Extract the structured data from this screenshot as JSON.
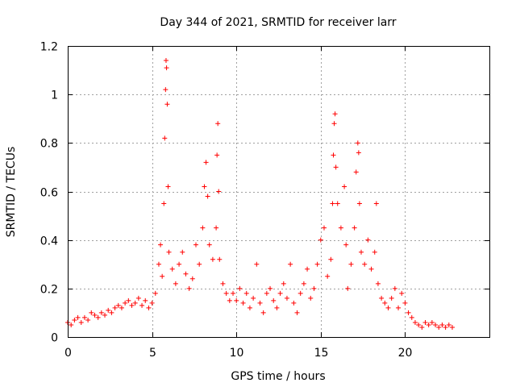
{
  "chart_data": {
    "type": "scatter",
    "title": "Day 344 of 2021, SRMTID for receiver larr",
    "xlabel": "GPS time / hours",
    "ylabel": "SRMTID / TECUs",
    "xlim": [
      0,
      25
    ],
    "ylim": [
      0,
      1.2
    ],
    "xticks": [
      0,
      5,
      10,
      15,
      20
    ],
    "yticks": [
      0,
      0.2,
      0.4,
      0.6,
      0.8,
      1,
      1.2
    ],
    "ytick_labels": [
      "0",
      "0.2",
      "0.4",
      "0.6",
      "0.8",
      "1",
      "1.2"
    ],
    "grid": true,
    "marker": "plus",
    "color": "#ff0000",
    "series": [
      {
        "name": "SRMTID",
        "points": [
          [
            0.0,
            0.06
          ],
          [
            0.2,
            0.05
          ],
          [
            0.4,
            0.07
          ],
          [
            0.6,
            0.08
          ],
          [
            0.8,
            0.06
          ],
          [
            1.0,
            0.08
          ],
          [
            1.2,
            0.07
          ],
          [
            1.4,
            0.1
          ],
          [
            1.6,
            0.09
          ],
          [
            1.8,
            0.08
          ],
          [
            2.0,
            0.1
          ],
          [
            2.2,
            0.09
          ],
          [
            2.4,
            0.11
          ],
          [
            2.6,
            0.1
          ],
          [
            2.8,
            0.12
          ],
          [
            3.0,
            0.13
          ],
          [
            3.2,
            0.12
          ],
          [
            3.4,
            0.14
          ],
          [
            3.6,
            0.15
          ],
          [
            3.8,
            0.13
          ],
          [
            4.0,
            0.14
          ],
          [
            4.2,
            0.16
          ],
          [
            4.4,
            0.13
          ],
          [
            4.6,
            0.15
          ],
          [
            4.8,
            0.12
          ],
          [
            5.0,
            0.14
          ],
          [
            5.2,
            0.18
          ],
          [
            5.4,
            0.3
          ],
          [
            5.5,
            0.38
          ],
          [
            5.6,
            0.25
          ],
          [
            5.7,
            0.55
          ],
          [
            5.75,
            0.82
          ],
          [
            5.8,
            1.02
          ],
          [
            5.83,
            1.14
          ],
          [
            5.86,
            1.11
          ],
          [
            5.9,
            0.96
          ],
          [
            5.95,
            0.62
          ],
          [
            6.0,
            0.35
          ],
          [
            6.2,
            0.28
          ],
          [
            6.4,
            0.22
          ],
          [
            6.6,
            0.3
          ],
          [
            6.8,
            0.35
          ],
          [
            7.0,
            0.26
          ],
          [
            7.2,
            0.2
          ],
          [
            7.4,
            0.24
          ],
          [
            7.6,
            0.38
          ],
          [
            7.8,
            0.3
          ],
          [
            8.0,
            0.45
          ],
          [
            8.1,
            0.62
          ],
          [
            8.2,
            0.72
          ],
          [
            8.3,
            0.58
          ],
          [
            8.4,
            0.38
          ],
          [
            8.6,
            0.32
          ],
          [
            8.8,
            0.45
          ],
          [
            8.85,
            0.75
          ],
          [
            8.9,
            0.88
          ],
          [
            8.95,
            0.6
          ],
          [
            9.0,
            0.32
          ],
          [
            9.2,
            0.22
          ],
          [
            9.4,
            0.18
          ],
          [
            9.6,
            0.15
          ],
          [
            9.8,
            0.18
          ],
          [
            10.0,
            0.15
          ],
          [
            10.2,
            0.2
          ],
          [
            10.4,
            0.14
          ],
          [
            10.6,
            0.18
          ],
          [
            10.8,
            0.12
          ],
          [
            11.0,
            0.16
          ],
          [
            11.2,
            0.3
          ],
          [
            11.4,
            0.14
          ],
          [
            11.6,
            0.1
          ],
          [
            11.8,
            0.18
          ],
          [
            12.0,
            0.2
          ],
          [
            12.2,
            0.15
          ],
          [
            12.4,
            0.12
          ],
          [
            12.6,
            0.18
          ],
          [
            12.8,
            0.22
          ],
          [
            13.0,
            0.16
          ],
          [
            13.2,
            0.3
          ],
          [
            13.4,
            0.14
          ],
          [
            13.6,
            0.1
          ],
          [
            13.8,
            0.18
          ],
          [
            14.0,
            0.22
          ],
          [
            14.2,
            0.28
          ],
          [
            14.4,
            0.16
          ],
          [
            14.6,
            0.2
          ],
          [
            14.8,
            0.3
          ],
          [
            15.0,
            0.4
          ],
          [
            15.2,
            0.45
          ],
          [
            15.4,
            0.25
          ],
          [
            15.6,
            0.32
          ],
          [
            15.7,
            0.55
          ],
          [
            15.75,
            0.75
          ],
          [
            15.8,
            0.88
          ],
          [
            15.85,
            0.92
          ],
          [
            15.9,
            0.7
          ],
          [
            16.0,
            0.55
          ],
          [
            16.2,
            0.45
          ],
          [
            16.4,
            0.62
          ],
          [
            16.5,
            0.38
          ],
          [
            16.6,
            0.2
          ],
          [
            16.8,
            0.3
          ],
          [
            17.0,
            0.45
          ],
          [
            17.1,
            0.68
          ],
          [
            17.2,
            0.8
          ],
          [
            17.25,
            0.76
          ],
          [
            17.3,
            0.55
          ],
          [
            17.4,
            0.35
          ],
          [
            17.6,
            0.3
          ],
          [
            17.8,
            0.4
          ],
          [
            18.0,
            0.28
          ],
          [
            18.2,
            0.35
          ],
          [
            18.3,
            0.55
          ],
          [
            18.4,
            0.22
          ],
          [
            18.6,
            0.16
          ],
          [
            18.8,
            0.14
          ],
          [
            19.0,
            0.12
          ],
          [
            19.2,
            0.16
          ],
          [
            19.4,
            0.2
          ],
          [
            19.6,
            0.12
          ],
          [
            19.8,
            0.18
          ],
          [
            20.0,
            0.14
          ],
          [
            20.2,
            0.1
          ],
          [
            20.4,
            0.08
          ],
          [
            20.6,
            0.06
          ],
          [
            20.8,
            0.05
          ],
          [
            21.0,
            0.04
          ],
          [
            21.2,
            0.06
          ],
          [
            21.4,
            0.05
          ],
          [
            21.6,
            0.06
          ],
          [
            21.8,
            0.05
          ],
          [
            22.0,
            0.04
          ],
          [
            22.2,
            0.05
          ],
          [
            22.4,
            0.04
          ],
          [
            22.6,
            0.05
          ],
          [
            22.8,
            0.04
          ]
        ]
      }
    ]
  }
}
